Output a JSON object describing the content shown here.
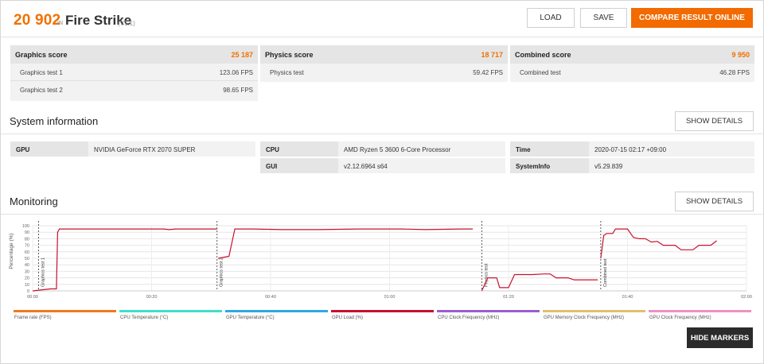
{
  "header": {
    "score": "20 902",
    "in_label": "IN",
    "test_name": "Fire Strike",
    "version": "(V1.1)",
    "load_label": "LOAD",
    "save_label": "SAVE",
    "compare_label": "COMPARE RESULT ONLINE"
  },
  "scores": {
    "graphics": {
      "title": "Graphics score",
      "value": "25 187",
      "rows": [
        {
          "label": "Graphics test 1",
          "value": "123.06 FPS"
        },
        {
          "label": "Graphics test 2",
          "value": "98.65 FPS"
        }
      ]
    },
    "physics": {
      "title": "Physics score",
      "value": "18 717",
      "rows": [
        {
          "label": "Physics test",
          "value": "59.42 FPS"
        }
      ]
    },
    "combined": {
      "title": "Combined score",
      "value": "9 950",
      "rows": [
        {
          "label": "Combined test",
          "value": "46.28 FPS"
        }
      ]
    }
  },
  "system_info": {
    "title": "System information",
    "details_label": "SHOW DETAILS",
    "gpu_key": "GPU",
    "gpu_val": "NVIDIA GeForce RTX 2070 SUPER",
    "cpu_key": "CPU",
    "cpu_val": "AMD Ryzen 5 3600 6-Core Processor",
    "gui_key": "GUI",
    "gui_val": "v2.12.6964 s64",
    "time_key": "Time",
    "time_val": "2020-07-15 02:17 +09:00",
    "sysinfo_key": "SystemInfo",
    "sysinfo_val": "v5.29.839"
  },
  "monitoring": {
    "title": "Monitoring",
    "details_label": "SHOW DETAILS",
    "hide_markers_label": "HIDE MARKERS",
    "legend": [
      {
        "label": "Frame rate (FPS)",
        "color": "#f07a1a"
      },
      {
        "label": "CPU Temperature (°C)",
        "color": "#3fe0c8"
      },
      {
        "label": "GPU Temperature (°C)",
        "color": "#30a8e0"
      },
      {
        "label": "GPU Load (%)",
        "color": "#c8102e"
      },
      {
        "label": "CPU Clock Frequency (MHz)",
        "color": "#9a5fd0"
      },
      {
        "label": "GPU Memory Clock Frequency (MHz)",
        "color": "#e0c070"
      },
      {
        "label": "GPU Clock Frequency (MHz)",
        "color": "#f090c0"
      }
    ]
  },
  "chart_data": {
    "type": "line",
    "ylabel": "Percentage (%)",
    "ylim": [
      0,
      100
    ],
    "yticks": [
      0,
      10,
      20,
      30,
      40,
      50,
      60,
      70,
      80,
      90,
      100
    ],
    "xlim_seconds": [
      0,
      120
    ],
    "xticks": [
      {
        "t": 0,
        "label": "00:00"
      },
      {
        "t": 20,
        "label": "00:20"
      },
      {
        "t": 40,
        "label": "00:40"
      },
      {
        "t": 60,
        "label": "01:00"
      },
      {
        "t": 80,
        "label": "01:20"
      },
      {
        "t": 100,
        "label": "01:40"
      },
      {
        "t": 120,
        "label": "02:00"
      }
    ],
    "grid": true,
    "markers": [
      {
        "t": 1,
        "label": "Graphics test 1"
      },
      {
        "t": 31,
        "label": "Graphics test 2"
      },
      {
        "t": 75.5,
        "label": "Physics test"
      },
      {
        "t": 95.5,
        "label": "Combined test"
      }
    ],
    "series": [
      {
        "name": "GPU Load (%)",
        "color": "#c8102e",
        "segments": [
          [
            [
              0,
              0
            ],
            [
              3,
              3
            ],
            [
              4,
              3
            ],
            [
              4.2,
              90
            ],
            [
              4.5,
              95
            ],
            [
              22,
              95
            ],
            [
              23,
              94
            ],
            [
              24,
              95
            ],
            [
              31,
              95
            ]
          ],
          [
            [
              31.2,
              50
            ],
            [
              33,
              53
            ],
            [
              34,
              95
            ],
            [
              37,
              95
            ],
            [
              42,
              94
            ],
            [
              48,
              94
            ],
            [
              55,
              95
            ],
            [
              60,
              95
            ],
            [
              62,
              95
            ],
            [
              66,
              94
            ],
            [
              72,
              95
            ],
            [
              74,
              95
            ]
          ],
          [
            [
              75.5,
              0
            ],
            [
              76.5,
              20
            ],
            [
              78,
              20
            ],
            [
              78.5,
              5
            ],
            [
              80,
              5
            ],
            [
              81,
              25
            ],
            [
              84,
              25
            ],
            [
              86,
              26
            ],
            [
              87,
              26
            ],
            [
              88,
              20
            ],
            [
              90,
              20
            ],
            [
              91,
              17
            ],
            [
              95,
              17
            ]
          ],
          [
            [
              95.5,
              50
            ],
            [
              96,
              85
            ],
            [
              96.5,
              88
            ],
            [
              97.5,
              88
            ],
            [
              98,
              95
            ],
            [
              100,
              95
            ],
            [
              101,
              82
            ],
            [
              102,
              80
            ],
            [
              103,
              80
            ],
            [
              104,
              75
            ],
            [
              105,
              76
            ],
            [
              106,
              70
            ],
            [
              108,
              70
            ],
            [
              109,
              63
            ],
            [
              111,
              63
            ],
            [
              112,
              70
            ],
            [
              114,
              70
            ],
            [
              115,
              77
            ]
          ]
        ]
      }
    ]
  }
}
